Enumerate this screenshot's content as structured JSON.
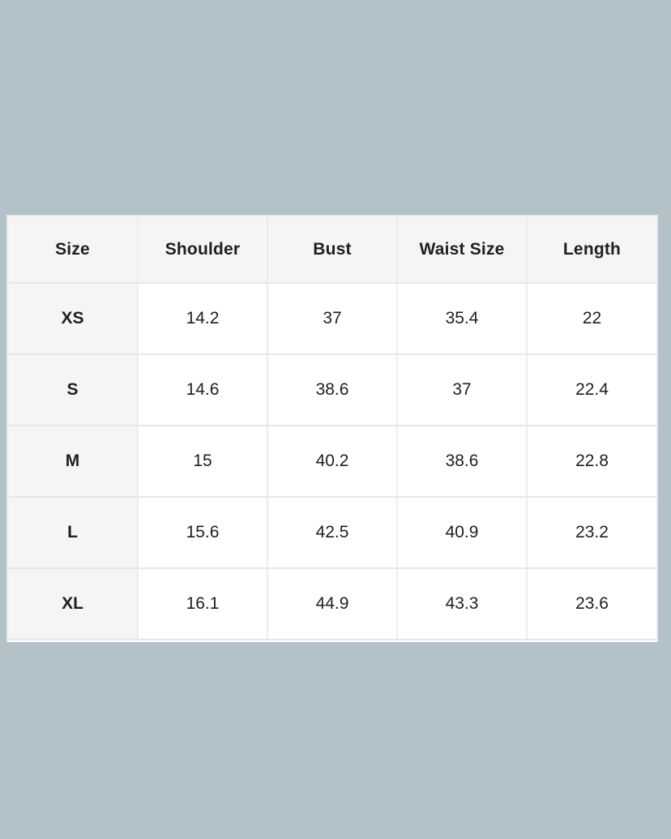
{
  "colors": {
    "backdrop": "#b3c1c8",
    "card_bg": "#ffffff",
    "header_cell_bg": "#f5f5f5",
    "border_vertical": "#ececec",
    "border_horizontal": "#e7e7e7",
    "outer_border": "#e9e9e9",
    "text": "#1f1f1f"
  },
  "size_chart": {
    "headers": [
      "Size",
      "Shoulder",
      "Bust",
      "Waist Size",
      "Length"
    ],
    "rows": [
      [
        "XS",
        "14.2",
        "37",
        "35.4",
        "22"
      ],
      [
        "S",
        "14.6",
        "38.6",
        "37",
        "22.4"
      ],
      [
        "M",
        "15",
        "40.2",
        "38.6",
        "22.8"
      ],
      [
        "L",
        "15.6",
        "42.5",
        "40.9",
        "23.2"
      ],
      [
        "XL",
        "16.1",
        "44.9",
        "43.3",
        "23.6"
      ]
    ]
  }
}
